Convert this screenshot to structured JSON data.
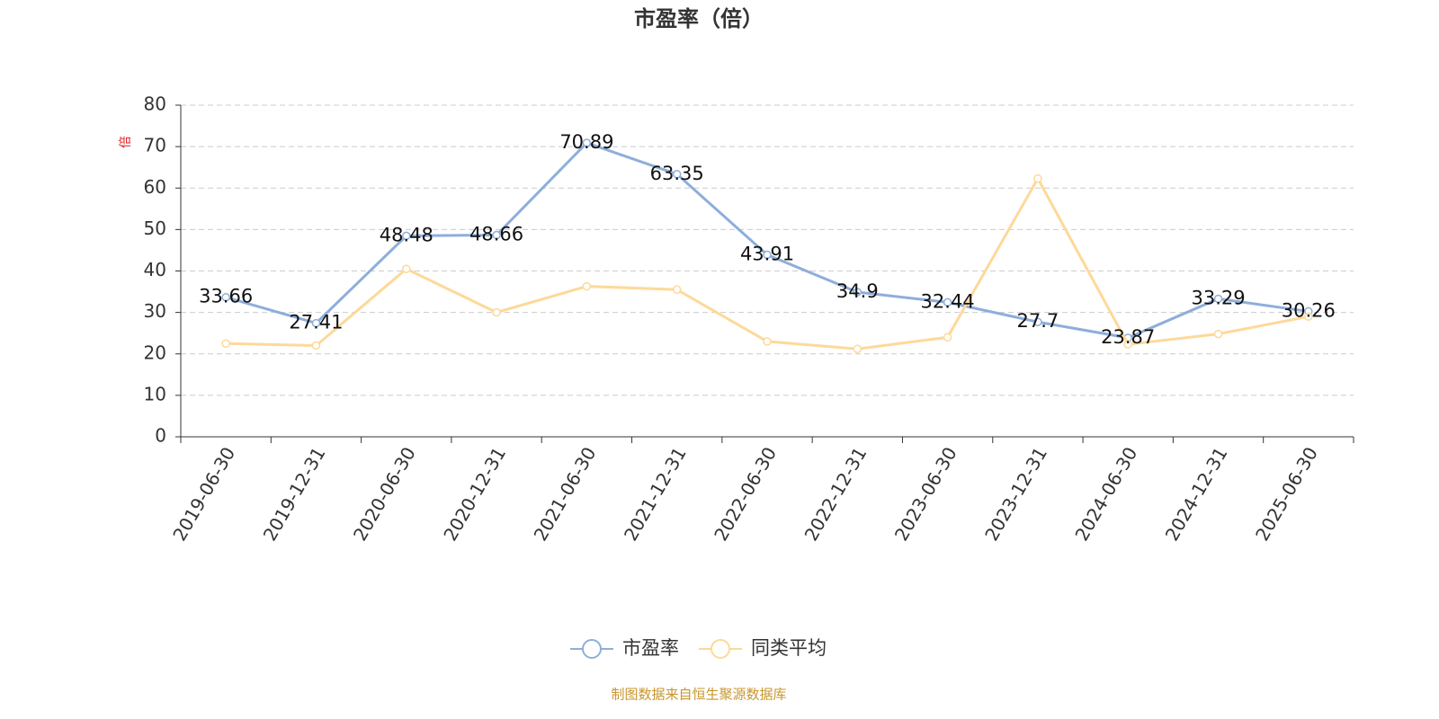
{
  "chart_data": {
    "type": "line",
    "title": "市盈率（倍）",
    "y_unit": "倍",
    "categories": [
      "2019-06-30",
      "2019-12-31",
      "2020-06-30",
      "2020-12-31",
      "2021-06-30",
      "2021-12-31",
      "2022-06-30",
      "2022-12-31",
      "2023-06-30",
      "2023-12-31",
      "2024-06-30",
      "2024-12-31",
      "2025-06-30"
    ],
    "series": [
      {
        "name": "市盈率",
        "color": "#8eaedb",
        "values": [
          33.66,
          27.41,
          48.48,
          48.66,
          70.89,
          63.35,
          43.91,
          34.9,
          32.44,
          27.7,
          23.87,
          33.29,
          30.26
        ],
        "show_labels": true
      },
      {
        "name": "同类平均",
        "color": "#fdd999",
        "values": [
          22.5,
          22,
          40.5,
          30,
          36.3,
          35.5,
          23,
          21.2,
          24,
          62.3,
          22.3,
          24.8,
          29
        ],
        "show_labels": false
      }
    ],
    "ylim": [
      0,
      80
    ],
    "yticks": [
      0,
      10,
      20,
      30,
      40,
      50,
      60,
      70,
      80
    ],
    "grid": true,
    "legend": "bottom",
    "source": "制图数据来自恒生聚源数据库"
  }
}
